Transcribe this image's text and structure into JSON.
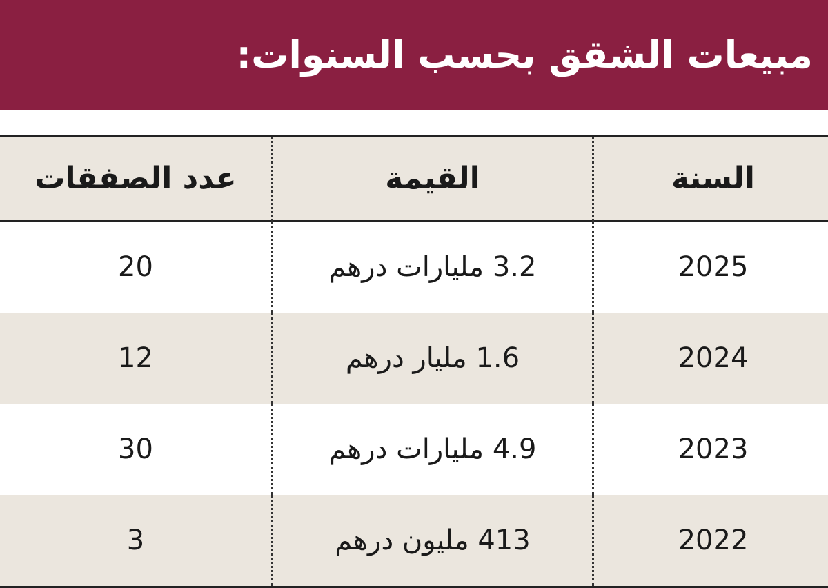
{
  "header": {
    "title": "مبيعات الشقق بحسب السنوات:"
  },
  "table": {
    "columns": [
      "السنة",
      "القيمة",
      "عدد الصفقات"
    ],
    "rows": [
      [
        2025,
        "3.2 مليارات درهم",
        20
      ],
      [
        2024,
        "1.6 مليار درهم",
        12
      ],
      [
        2023,
        "4.9 مليارات درهم",
        30
      ],
      [
        2022,
        "413 مليون درهم",
        3
      ]
    ]
  }
}
